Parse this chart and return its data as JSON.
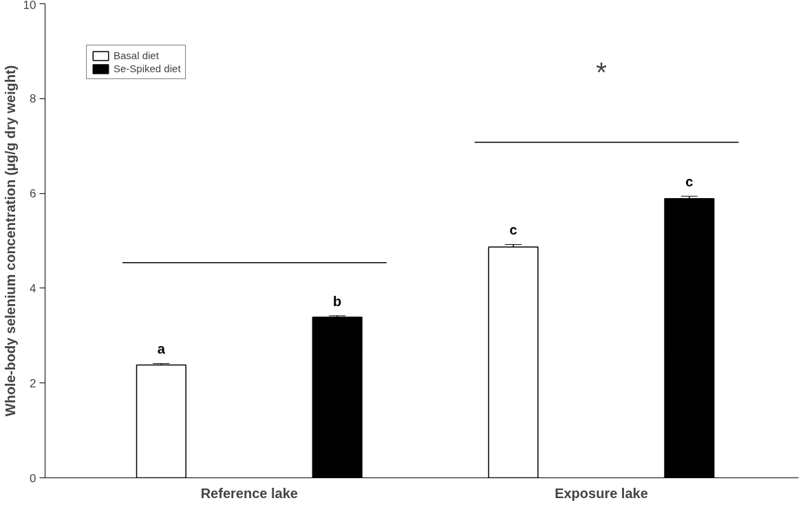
{
  "chart_data": {
    "type": "bar",
    "ylabel": "Whole-body selenium concentration (µg/g dry weight)",
    "categories": [
      "Reference lake",
      "Exposure lake"
    ],
    "series": [
      {
        "name": "Basal diet",
        "color": "#ffffff",
        "values": [
          2.38,
          4.87
        ],
        "errors": [
          0.03,
          0.05
        ],
        "value_labels": [
          "a",
          "c"
        ]
      },
      {
        "name": "Se-Spiked diet",
        "color": "#000000",
        "values": [
          3.39,
          5.89
        ],
        "errors": [
          0.03,
          0.05
        ],
        "value_labels": [
          "b",
          "c"
        ]
      }
    ],
    "ylim": [
      0,
      10
    ],
    "yticks": [
      0,
      2,
      4,
      6,
      8,
      10
    ],
    "grid": false,
    "legend": "top left",
    "ref_lines": [
      {
        "axis": "y",
        "value": 4.54,
        "color": "#000000"
      },
      {
        "axis": "y",
        "value": 7.08,
        "color": "#000000"
      }
    ],
    "annotations": [
      "*"
    ]
  }
}
